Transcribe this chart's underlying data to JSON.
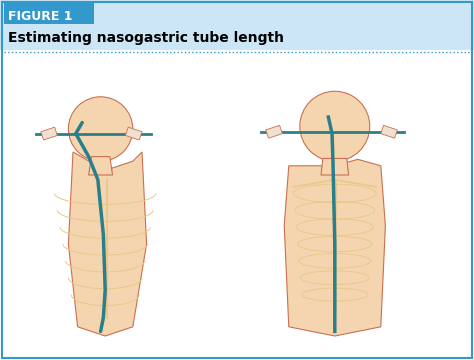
{
  "figure_label": "FIGURE 1",
  "title": "Estimating nasogastric tube length",
  "figure_label_bg": "#3399cc",
  "title_bg": "#cce6f5",
  "border_color": "#3399cc",
  "dotted_line_color": "#3399cc",
  "background_color": "#ffffff",
  "label_text_color": "#ffffff",
  "title_text_color": "#000000",
  "fig_width": 4.74,
  "fig_height": 3.6,
  "dpi": 100,
  "skin_color": "#f5d5b0",
  "bone_color": "#e8c98a",
  "tube_color": "#2a7f8a",
  "outline_color": "#c87050",
  "hand_color": "#f0e0d0"
}
